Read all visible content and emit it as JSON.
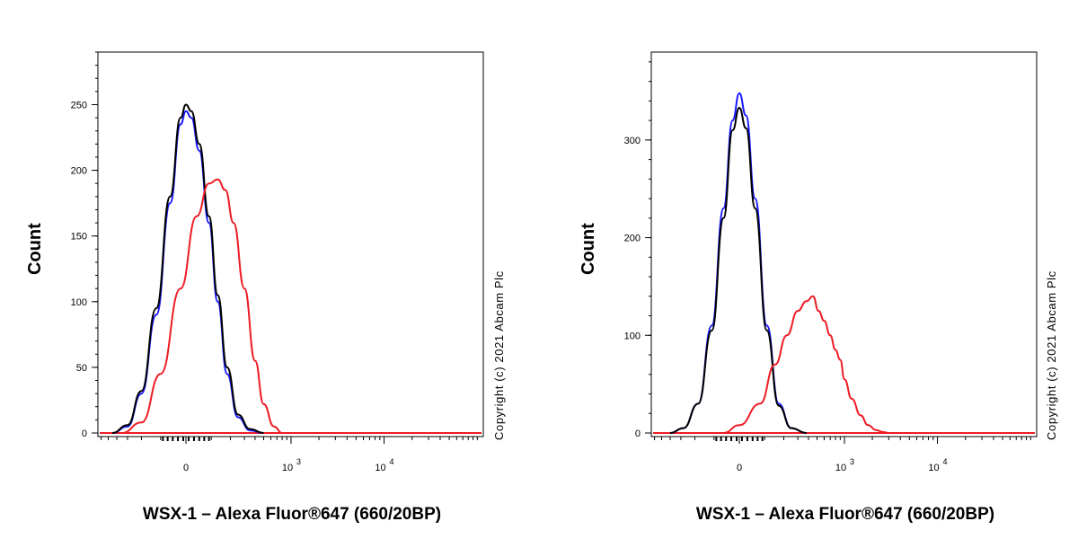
{
  "chart_data": [
    {
      "type": "line",
      "ylabel": "Count",
      "xlabel": "WSX-1 – Alexa Fluor®647 (660/20BP)",
      "copyright": "Copyright (c) 2021 Abcam Plc",
      "yticks": [
        0,
        50,
        100,
        150,
        200,
        250
      ],
      "ylim": [
        0,
        290
      ],
      "xtick_labels": [
        {
          "value": 0,
          "label": "0"
        },
        {
          "value": 1000,
          "label": "10",
          "exp": "3"
        },
        {
          "value": 10000,
          "label": "10",
          "exp": "4"
        }
      ],
      "colors": {
        "blue": "#1a1aff",
        "black": "#000000",
        "red": "#ee1c25"
      },
      "series": [
        {
          "color": "blue",
          "x": [
            -450,
            -300,
            -200,
            -120,
            -60,
            -20,
            0,
            20,
            50,
            90,
            130,
            180,
            250,
            350,
            500
          ],
          "y": [
            0,
            5,
            30,
            90,
            175,
            235,
            245,
            240,
            215,
            160,
            100,
            45,
            12,
            2,
            0
          ]
        },
        {
          "color": "black",
          "x": [
            -450,
            -300,
            -200,
            -120,
            -60,
            -20,
            0,
            20,
            50,
            90,
            130,
            180,
            250,
            350,
            500
          ],
          "y": [
            0,
            6,
            32,
            95,
            180,
            240,
            250,
            245,
            220,
            165,
            105,
            50,
            14,
            3,
            0
          ]
        },
        {
          "color": "red",
          "x": [
            -350,
            -200,
            -100,
            -20,
            40,
            90,
            130,
            170,
            220,
            300,
            400,
            500,
            650,
            800
          ],
          "y": [
            0,
            8,
            45,
            110,
            165,
            190,
            193,
            185,
            160,
            110,
            55,
            22,
            5,
            0
          ]
        }
      ]
    },
    {
      "type": "line",
      "ylabel": "Count",
      "xlabel": "WSX-1 – Alexa Fluor®647 (660/20BP)",
      "copyright": "Copyright (c) 2021 Abcam Plc",
      "yticks": [
        0,
        100,
        200,
        300
      ],
      "ylim": [
        0,
        390
      ],
      "xtick_labels": [
        {
          "value": 0,
          "label": "0"
        },
        {
          "value": 1000,
          "label": "10",
          "exp": "3"
        },
        {
          "value": 10000,
          "label": "10",
          "exp": "4"
        }
      ],
      "colors": {
        "blue": "#1a1aff",
        "black": "#000000",
        "red": "#ee1c25"
      },
      "series": [
        {
          "color": "blue",
          "x": [
            -400,
            -280,
            -180,
            -110,
            -60,
            -25,
            0,
            25,
            60,
            110,
            170,
            250,
            380
          ],
          "y": [
            0,
            5,
            30,
            110,
            230,
            320,
            348,
            325,
            240,
            110,
            30,
            5,
            0
          ]
        },
        {
          "color": "black",
          "x": [
            -400,
            -280,
            -180,
            -110,
            -60,
            -25,
            0,
            25,
            60,
            110,
            170,
            250,
            380
          ],
          "y": [
            0,
            5,
            30,
            105,
            220,
            310,
            333,
            312,
            230,
            105,
            28,
            5,
            0
          ]
        },
        {
          "color": "red",
          "x": [
            -60,
            0,
            80,
            150,
            220,
            300,
            380,
            450,
            520,
            600,
            700,
            800,
            900,
            1000,
            1200,
            1500,
            1800,
            2200,
            2600,
            3000
          ],
          "y": [
            0,
            8,
            30,
            70,
            100,
            125,
            135,
            140,
            125,
            115,
            100,
            85,
            75,
            55,
            35,
            18,
            8,
            3,
            1,
            0
          ]
        }
      ]
    }
  ]
}
